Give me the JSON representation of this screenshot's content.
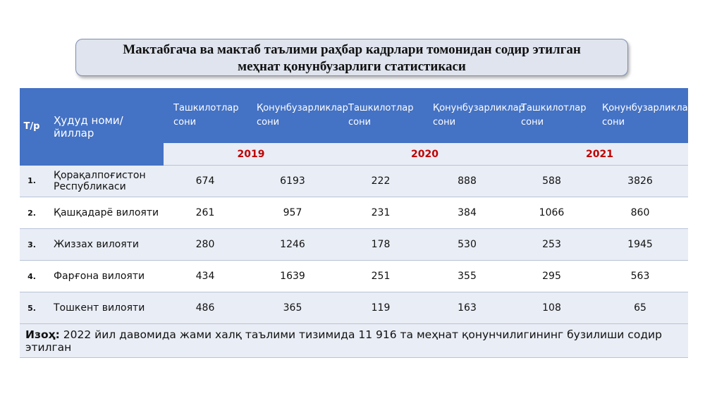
{
  "header": {
    "title_line1": "Мактабгача ва мактаб таълими раҳбар кадрлари томонидан содир этилган",
    "title_line2": "меҳнат қонунбузарлиги статистикаси"
  },
  "table": {
    "head": {
      "num": "Т/р",
      "region": "Ҳудуд номи/йиллар",
      "columns": [
        "Ташкилотлар сони",
        "Қонунбузарликлар сони",
        "Ташкилотлар сони",
        "Қонунбузарликлар сони",
        "Ташкилотлар сони",
        "Қонунбузарликлар сони"
      ],
      "years": [
        "2019",
        "2020",
        "2021"
      ]
    },
    "rows": [
      {
        "num": "1.",
        "name": "Қорақалпоғистон Республикаси",
        "values": [
          674,
          6193,
          222,
          888,
          588,
          3826
        ]
      },
      {
        "num": "2.",
        "name": "Қашқадарё вилояти",
        "values": [
          261,
          957,
          231,
          384,
          1066,
          860
        ]
      },
      {
        "num": "3.",
        "name": "Жиззах вилояти",
        "values": [
          280,
          1246,
          178,
          530,
          253,
          1945
        ]
      },
      {
        "num": "4.",
        "name": "Фарғона вилояти",
        "values": [
          434,
          1639,
          251,
          355,
          295,
          563
        ]
      },
      {
        "num": "5.",
        "name": "Тошкент вилояти",
        "values": [
          486,
          365,
          119,
          163,
          108,
          65
        ]
      }
    ],
    "note": {
      "label": "Изоҳ:",
      "text": "2022 йил давомида жами халқ таълими тизимида 11 916 та меҳнат қонунчилигининг бузилиши содир этилган"
    }
  }
}
